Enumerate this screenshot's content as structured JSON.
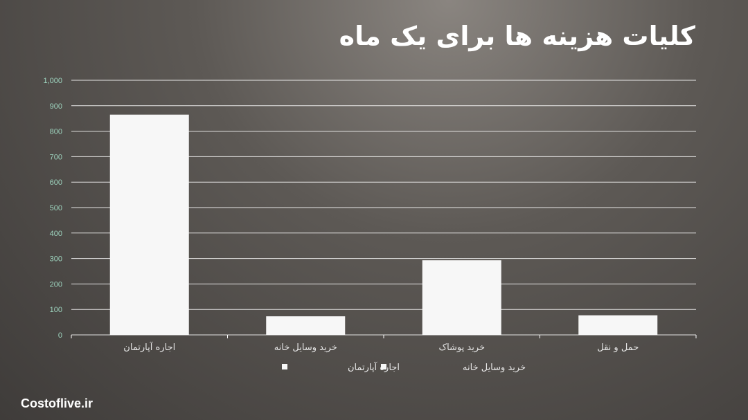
{
  "title": "کلیات هزینه ها برای یک ماه",
  "watermark": "Costoflive.ir",
  "colors": {
    "bar": "#f7f7f7",
    "grid": "#ffffff",
    "tick": "#9fd6c0",
    "label": "#e6e6e6"
  },
  "chart_data": {
    "type": "bar",
    "categories": [
      "اجاره آپارتمان",
      "خرید وسایل خانه",
      "خرید پوشاک",
      "حمل و نقل"
    ],
    "values": [
      865,
      73,
      293,
      77
    ],
    "ylim": [
      0,
      1000
    ],
    "yticks": [
      "0",
      "100",
      "200",
      "300",
      "400",
      "500",
      "600",
      "700",
      "800",
      "900",
      "1,000"
    ],
    "grid": true,
    "legend": [
      "اجاره آپارتمان",
      "خرید وسایل خانه"
    ],
    "legend_position": "bottom"
  }
}
